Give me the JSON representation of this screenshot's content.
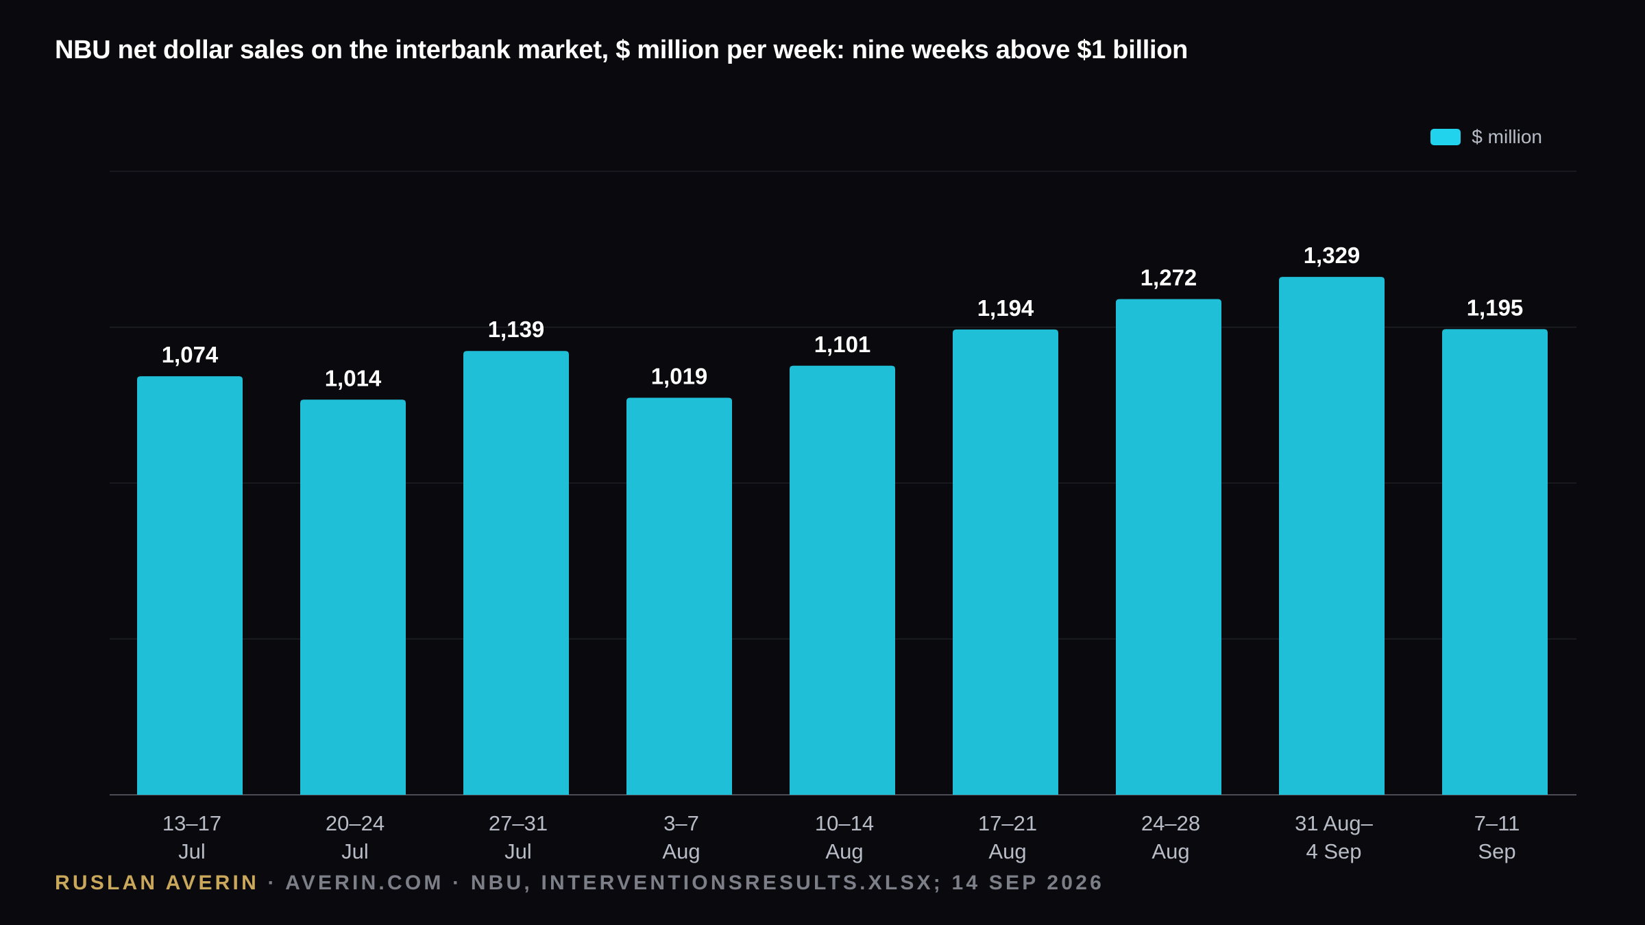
{
  "title": "NBU net dollar sales on the interbank market, $ million per week: nine weeks above $1 billion",
  "legend": {
    "label": "$ million"
  },
  "footer": {
    "author": "RUSLAN AVERIN",
    "source": "· AVERIN.COM · NBU, INTERVENTIONSRESULTS.XLSX; 14 SEP 2026"
  },
  "colors": {
    "bar": "#1fbfd8",
    "legend_swatch": "#22d3ee",
    "background": "#0a0a0e",
    "gridline": "#1e2026",
    "author": "#c9a85c"
  },
  "chart_data": {
    "type": "bar",
    "categories": [
      [
        "13–17",
        "Jul"
      ],
      [
        "20–24",
        "Jul"
      ],
      [
        "27–31",
        "Jul"
      ],
      [
        "3–7",
        "Aug"
      ],
      [
        "10–14",
        "Aug"
      ],
      [
        "17–21",
        "Aug"
      ],
      [
        "24–28",
        "Aug"
      ],
      [
        "31 Aug–",
        "4 Sep"
      ],
      [
        "7–11",
        "Sep"
      ]
    ],
    "values": [
      1074,
      1014,
      1139,
      1019,
      1101,
      1194,
      1272,
      1329,
      1195
    ],
    "data_labels": [
      "1,074",
      "1,014",
      "1,139",
      "1,019",
      "1,101",
      "1,194",
      "1,272",
      "1,329",
      "1,195"
    ],
    "series": [
      {
        "name": "$ million",
        "values": [
          1074,
          1014,
          1139,
          1019,
          1101,
          1194,
          1272,
          1329,
          1195
        ]
      }
    ],
    "ylim": [
      0,
      1600
    ],
    "gridlines": [
      400,
      800,
      1200,
      1600
    ],
    "grid": true,
    "legend_position": "top-right",
    "y_tick_labels_shown": false
  }
}
